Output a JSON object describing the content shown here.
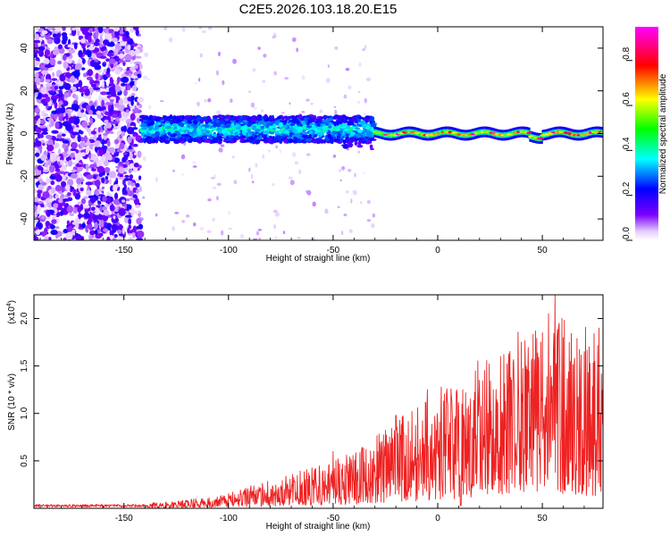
{
  "figure_title": "C2E5.2026.103.18.20.E15",
  "chart_data": [
    {
      "type": "heatmap",
      "title": "C2E5.2026.103.18.20.E15",
      "xlabel": "Height of straight line (km)",
      "ylabel": "Frequency (Hz)",
      "xlim": [
        -193,
        79
      ],
      "ylim": [
        -50,
        50
      ],
      "xticks": [
        -150,
        -100,
        -50,
        0,
        50
      ],
      "yticks": [
        -40,
        -20,
        0,
        20,
        40
      ],
      "xtick_labels": [
        "-150",
        "-100",
        "-50",
        "0",
        "50"
      ],
      "ytick_labels": [
        "-40",
        "-20",
        "0",
        "20",
        "40"
      ],
      "colorbar": {
        "label": "Normalized spectral amplitude",
        "range": [
          0,
          0.95
        ],
        "ticks": [
          0.0,
          0.2,
          0.4,
          0.6,
          0.8
        ],
        "tick_labels": [
          "0.0",
          "0.2",
          "0.4",
          "0.6",
          "0.8"
        ],
        "colormap": [
          "#ffffff",
          "#7a00ff",
          "#0000ff",
          "#00ffff",
          "#00ff00",
          "#ffff00",
          "#ff0000",
          "#ff00ff"
        ]
      },
      "regions": [
        {
          "x_range": [
            -193,
            -142
          ],
          "freq_range": [
            -50,
            50
          ],
          "amplitude": "0.0-0.25 scattered noise"
        },
        {
          "x_range": [
            -142,
            -30
          ],
          "center_freq": 2,
          "half_width": 6,
          "amplitude": "0.2-0.45"
        },
        {
          "x_range": [
            -30,
            79
          ],
          "center_freq": 0,
          "half_width": 2,
          "amplitude": "0.3-0.95 narrow line"
        }
      ]
    },
    {
      "type": "line",
      "xlabel": "Height of straight line (km)",
      "ylabel": "SNR (10 * v/v)",
      "y_multiplier": "(x10",
      "y_multiplier_exp": "4",
      "y_multiplier_close": ")",
      "xlim": [
        -193,
        79
      ],
      "ylim": [
        0,
        2.25
      ],
      "xticks": [
        -150,
        -100,
        -50,
        0,
        50
      ],
      "xtick_labels": [
        "-150",
        "-100",
        "-50",
        "0",
        "50"
      ],
      "yticks": [
        0.5,
        1.0,
        1.5,
        2.0
      ],
      "ytick_labels": [
        "0.5",
        "1.0",
        "1.5",
        "2.0"
      ],
      "series": [
        {
          "name": "SNR",
          "color": "#ee2222",
          "envelope_x": [
            -193,
            -150,
            -130,
            -110,
            -100,
            -90,
            -80,
            -70,
            -60,
            -50,
            -40,
            -30,
            -20,
            -10,
            0,
            10,
            20,
            30,
            40,
            50,
            55,
            60,
            70,
            79
          ],
          "envelope_y": [
            0.02,
            0.03,
            0.04,
            0.07,
            0.1,
            0.14,
            0.18,
            0.22,
            0.26,
            0.3,
            0.36,
            0.45,
            0.55,
            0.65,
            0.75,
            0.85,
            0.95,
            1.05,
            1.15,
            1.22,
            1.25,
            1.2,
            1.15,
            1.1
          ],
          "peak_x": [
            -50,
            -20,
            -5,
            20,
            30,
            40,
            50,
            53,
            56,
            58,
            60,
            70,
            77
          ],
          "peak_y": [
            0.6,
            0.98,
            1.25,
            1.35,
            1.6,
            1.75,
            1.85,
            2.05,
            2.25,
            1.95,
            1.8,
            1.65,
            1.9
          ]
        }
      ]
    }
  ]
}
